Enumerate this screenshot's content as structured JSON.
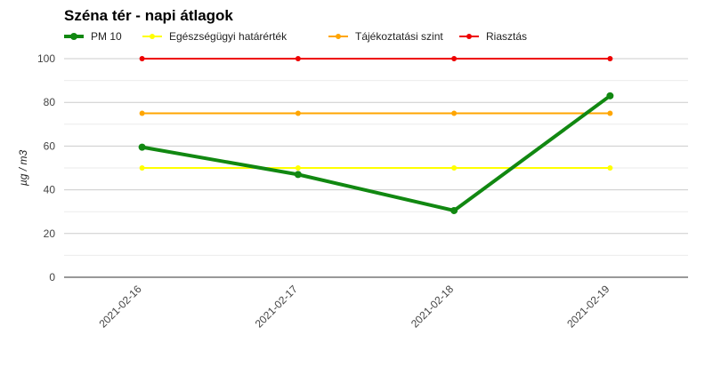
{
  "chart_data": {
    "type": "line",
    "title": "Széna tér - napi átlagok",
    "ylabel": "µg / m3",
    "xlabel": "",
    "x": [
      "2021-02-16",
      "2021-02-17",
      "2021-02-18",
      "2021-02-19"
    ],
    "ylim": [
      0,
      100
    ],
    "yticks": [
      0,
      20,
      40,
      60,
      80,
      100
    ],
    "grid": true,
    "legend_position": "top",
    "series": [
      {
        "name": "PM 10",
        "values": [
          59.5,
          47,
          30.5,
          83
        ],
        "color": "#118811"
      },
      {
        "name": "Egészségügyi határérték",
        "values": [
          50,
          50,
          50,
          50
        ],
        "color": "#ffff00"
      },
      {
        "name": "Tájékoztatási szint",
        "values": [
          75,
          75,
          75,
          75
        ],
        "color": "#ffa500"
      },
      {
        "name": "Riasztás",
        "values": [
          100,
          100,
          100,
          100
        ],
        "color": "#ee0000"
      }
    ]
  }
}
